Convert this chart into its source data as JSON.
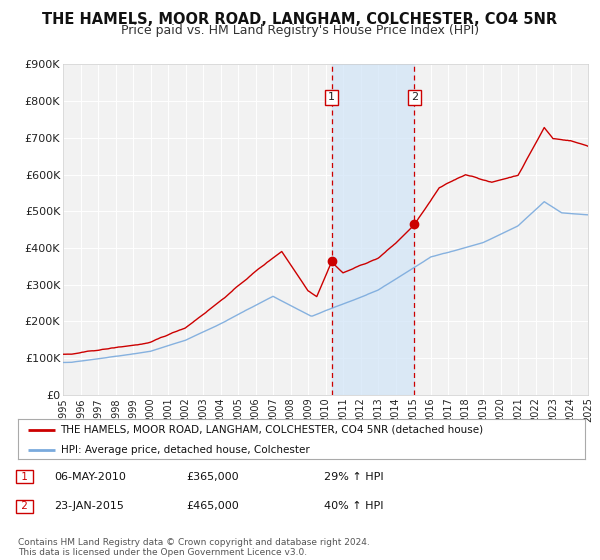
{
  "title": "THE HAMELS, MOOR ROAD, LANGHAM, COLCHESTER, CO4 5NR",
  "subtitle": "Price paid vs. HM Land Registry's House Price Index (HPI)",
  "background_color": "#ffffff",
  "plot_bg_color": "#f2f2f2",
  "grid_color": "#ffffff",
  "title_fontsize": 10.5,
  "subtitle_fontsize": 9,
  "red_line_color": "#cc0000",
  "blue_line_color": "#7aaadd",
  "sale1_date": 2010.35,
  "sale1_value": 365000,
  "sale1_label": "1",
  "sale2_date": 2015.07,
  "sale2_value": 465000,
  "sale2_label": "2",
  "legend_line1": "THE HAMELS, MOOR ROAD, LANGHAM, COLCHESTER, CO4 5NR (detached house)",
  "legend_line2": "HPI: Average price, detached house, Colchester",
  "annotation1_date": "06-MAY-2010",
  "annotation1_price": "£365,000",
  "annotation1_hpi": "29% ↑ HPI",
  "annotation2_date": "23-JAN-2015",
  "annotation2_price": "£465,000",
  "annotation2_hpi": "40% ↑ HPI",
  "footer1": "Contains HM Land Registry data © Crown copyright and database right 2024.",
  "footer2": "This data is licensed under the Open Government Licence v3.0.",
  "xmin": 1995,
  "xmax": 2025,
  "ymin": 0,
  "ymax": 900000,
  "yticks": [
    0,
    100000,
    200000,
    300000,
    400000,
    500000,
    600000,
    700000,
    800000,
    900000
  ],
  "ytick_labels": [
    "£0",
    "£100K",
    "£200K",
    "£300K",
    "£400K",
    "£500K",
    "£600K",
    "£700K",
    "£800K",
    "£900K"
  ]
}
